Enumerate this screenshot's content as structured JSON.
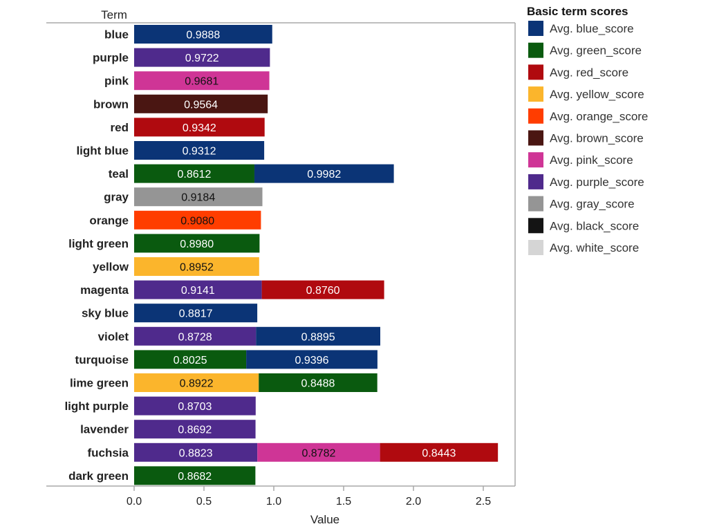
{
  "chart_data": {
    "type": "bar",
    "orientation": "horizontal",
    "stacked": true,
    "row_header": "Term",
    "xlabel": "Value",
    "xlim": [
      0,
      2.75
    ],
    "xticks": [
      "0.0",
      "0.5",
      "1.0",
      "1.5",
      "2.0",
      "2.5"
    ],
    "xtick_values": [
      0,
      0.5,
      1.0,
      1.5,
      2.0,
      2.5
    ],
    "legend_title": "Basic term scores",
    "legend_position": "right",
    "legend": [
      {
        "name": "Avg. blue_score",
        "key": "blue",
        "color": "#0b3476",
        "text_color": "#ffffff"
      },
      {
        "name": "Avg. green_score",
        "key": "green",
        "color": "#0a5a0f",
        "text_color": "#ffffff"
      },
      {
        "name": "Avg. red_score",
        "key": "red",
        "color": "#b00a0f",
        "text_color": "#ffffff"
      },
      {
        "name": "Avg. yellow_score",
        "key": "yellow",
        "color": "#fbb52c",
        "text_color": "#111111"
      },
      {
        "name": "Avg. orange_score",
        "key": "orange",
        "color": "#ff3d00",
        "text_color": "#111111"
      },
      {
        "name": "Avg. brown_score",
        "key": "brown",
        "color": "#4a1612",
        "text_color": "#ffffff"
      },
      {
        "name": "Avg. pink_score",
        "key": "pink",
        "color": "#cf3596",
        "text_color": "#111111"
      },
      {
        "name": "Avg. purple_score",
        "key": "purple",
        "color": "#4f2a8c",
        "text_color": "#ffffff"
      },
      {
        "name": "Avg. gray_score",
        "key": "gray",
        "color": "#959595",
        "text_color": "#111111"
      },
      {
        "name": "Avg. black_score",
        "key": "black",
        "color": "#141414",
        "text_color": "#ffffff"
      },
      {
        "name": "Avg. white_score",
        "key": "white",
        "color": "#d5d5d5",
        "text_color": "#111111"
      }
    ],
    "rows": [
      {
        "term": "blue",
        "segments": [
          {
            "color_key": "blue",
            "value": 0.9888,
            "label": "0.9888"
          }
        ]
      },
      {
        "term": "purple",
        "segments": [
          {
            "color_key": "purple",
            "value": 0.9722,
            "label": "0.9722"
          }
        ]
      },
      {
        "term": "pink",
        "segments": [
          {
            "color_key": "pink",
            "value": 0.9681,
            "label": "0.9681"
          }
        ]
      },
      {
        "term": "brown",
        "segments": [
          {
            "color_key": "brown",
            "value": 0.9564,
            "label": "0.9564"
          }
        ]
      },
      {
        "term": "red",
        "segments": [
          {
            "color_key": "red",
            "value": 0.9342,
            "label": "0.9342"
          }
        ]
      },
      {
        "term": "light blue",
        "segments": [
          {
            "color_key": "blue",
            "value": 0.9312,
            "label": "0.9312"
          }
        ]
      },
      {
        "term": "teal",
        "segments": [
          {
            "color_key": "green",
            "value": 0.8612,
            "label": "0.8612"
          },
          {
            "color_key": "blue",
            "value": 0.9982,
            "label": "0.9982"
          }
        ]
      },
      {
        "term": "gray",
        "segments": [
          {
            "color_key": "gray",
            "value": 0.9184,
            "label": "0.9184"
          }
        ]
      },
      {
        "term": "orange",
        "segments": [
          {
            "color_key": "orange",
            "value": 0.908,
            "label": "0.9080"
          }
        ]
      },
      {
        "term": "light green",
        "segments": [
          {
            "color_key": "green",
            "value": 0.898,
            "label": "0.8980"
          }
        ]
      },
      {
        "term": "yellow",
        "segments": [
          {
            "color_key": "yellow",
            "value": 0.8952,
            "label": "0.8952"
          }
        ]
      },
      {
        "term": "magenta",
        "segments": [
          {
            "color_key": "purple",
            "value": 0.9141,
            "label": "0.9141"
          },
          {
            "color_key": "red",
            "value": 0.876,
            "label": "0.8760"
          }
        ]
      },
      {
        "term": "sky blue",
        "segments": [
          {
            "color_key": "blue",
            "value": 0.8817,
            "label": "0.8817"
          }
        ]
      },
      {
        "term": "violet",
        "segments": [
          {
            "color_key": "purple",
            "value": 0.8728,
            "label": "0.8728"
          },
          {
            "color_key": "blue",
            "value": 0.8895,
            "label": "0.8895"
          }
        ]
      },
      {
        "term": "turquoise",
        "segments": [
          {
            "color_key": "green",
            "value": 0.8025,
            "label": "0.8025"
          },
          {
            "color_key": "blue",
            "value": 0.9396,
            "label": "0.9396"
          }
        ]
      },
      {
        "term": "lime green",
        "segments": [
          {
            "color_key": "yellow",
            "value": 0.8922,
            "label": "0.8922"
          },
          {
            "color_key": "green",
            "value": 0.8488,
            "label": "0.8488"
          }
        ]
      },
      {
        "term": "light purple",
        "segments": [
          {
            "color_key": "purple",
            "value": 0.8703,
            "label": "0.8703"
          }
        ]
      },
      {
        "term": "lavender",
        "segments": [
          {
            "color_key": "purple",
            "value": 0.8692,
            "label": "0.8692"
          }
        ]
      },
      {
        "term": "fuchsia",
        "segments": [
          {
            "color_key": "purple",
            "value": 0.8823,
            "label": "0.8823"
          },
          {
            "color_key": "pink",
            "value": 0.8782,
            "label": "0.8782"
          },
          {
            "color_key": "red",
            "value": 0.8443,
            "label": "0.8443"
          }
        ]
      },
      {
        "term": "dark green",
        "segments": [
          {
            "color_key": "green",
            "value": 0.8682,
            "label": "0.8682"
          }
        ]
      }
    ]
  }
}
